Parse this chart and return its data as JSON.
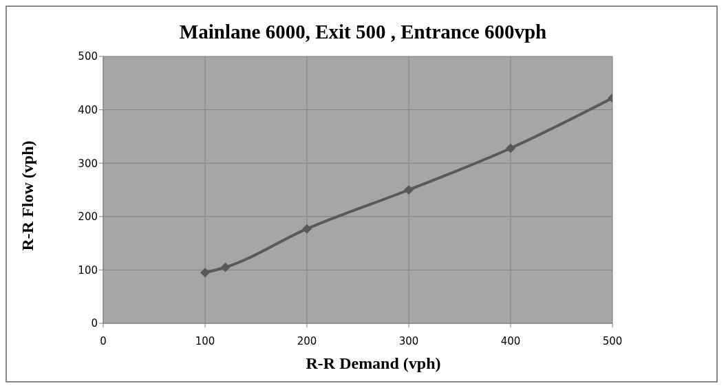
{
  "chart_data": {
    "type": "line",
    "title": "Mainlane 6000,  Exit 500 , Entrance  600vph",
    "xlabel": "R-R Demand (vph)",
    "ylabel": "R-R Flow (vph)",
    "x": [
      100,
      120,
      200,
      300,
      400,
      500
    ],
    "series": [
      {
        "color": "#595959",
        "values": [
          95,
          105,
          177,
          250,
          328,
          422
        ]
      }
    ],
    "xlim": [
      0,
      500
    ],
    "xticks": [
      0,
      100,
      200,
      300,
      400,
      500
    ],
    "ylim": [
      0,
      500
    ],
    "yticks": [
      0,
      100,
      200,
      300,
      400,
      500
    ],
    "grid": true,
    "legend": false,
    "marker": "diamond",
    "line_style": "solid"
  }
}
